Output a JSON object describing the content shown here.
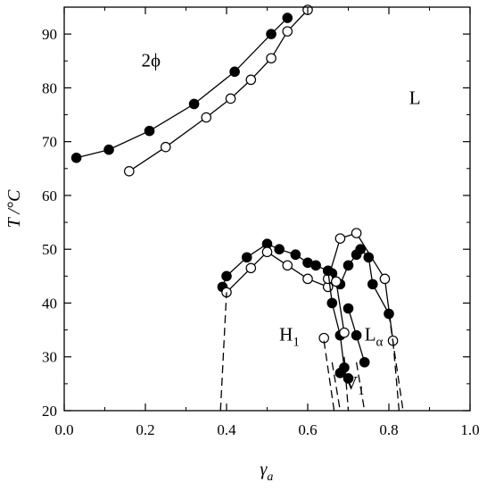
{
  "chart_data": {
    "type": "scatter",
    "xlabel": "γ",
    "xlabel_sub": "a",
    "ylabel": "T /°C",
    "xlim": [
      0.0,
      1.0
    ],
    "ylim": [
      20,
      95
    ],
    "xticks": [
      "0.0",
      "0.2",
      "0.4",
      "0.6",
      "0.8",
      "1.0"
    ],
    "yticks": [
      "20",
      "30",
      "40",
      "50",
      "60",
      "70",
      "80",
      "90"
    ],
    "grid": false,
    "region_labels": [
      {
        "text": "2ϕ",
        "sub": "",
        "x": 0.19,
        "y": 84
      },
      {
        "text": "L",
        "sub": "",
        "x": 0.85,
        "y": 77
      },
      {
        "text": "H",
        "sub": "1",
        "x": 0.53,
        "y": 33
      },
      {
        "text": "L",
        "sub": "α",
        "x": 0.74,
        "y": 33
      },
      {
        "text": "V",
        "sub": "1",
        "x": 0.69,
        "y": 24
      }
    ],
    "series": [
      {
        "marker": "filled",
        "style": "solid",
        "x": [
          0.03,
          0.11,
          0.21,
          0.32,
          0.42,
          0.51,
          0.55
        ],
        "y": [
          67,
          68.5,
          72,
          77,
          83,
          90,
          93
        ]
      },
      {
        "marker": "open",
        "style": "solid",
        "x": [
          0.16,
          0.25,
          0.35,
          0.41,
          0.46,
          0.51,
          0.55,
          0.6
        ],
        "y": [
          64.5,
          69,
          74.5,
          78,
          81.5,
          85.5,
          90.5,
          94.5
        ]
      },
      {
        "marker": "filled",
        "style": "solid",
        "x": [
          0.39,
          0.4,
          0.45,
          0.5,
          0.53,
          0.57,
          0.6,
          0.62,
          0.65,
          0.66
        ],
        "y": [
          43,
          45,
          48.5,
          51,
          50,
          49,
          47.5,
          47,
          46,
          45.5
        ]
      },
      {
        "marker": "open",
        "style": "solid",
        "x": [
          0.4,
          0.46,
          0.5,
          0.55,
          0.6,
          0.65
        ],
        "y": [
          42,
          46.5,
          49.5,
          47,
          44.5,
          43
        ]
      },
      {
        "marker": "filled",
        "style": "solid",
        "x": [
          0.66,
          0.68,
          0.7,
          0.72,
          0.73,
          0.75,
          0.76,
          0.8
        ],
        "y": [
          45.5,
          43.5,
          47,
          49,
          50,
          48.5,
          43.5,
          38
        ]
      },
      {
        "marker": "open",
        "style": "solid",
        "x": [
          0.65,
          0.68,
          0.72,
          0.79,
          0.81
        ],
        "y": [
          44.5,
          52,
          53,
          44.5,
          33
        ]
      },
      {
        "marker": "filled",
        "style": "solid",
        "x": [
          0.65,
          0.66,
          0.68,
          0.69
        ],
        "y": [
          46,
          40,
          34,
          28
        ]
      },
      {
        "marker": "filled",
        "style": "solid",
        "x": [
          0.7,
          0.72,
          0.74
        ],
        "y": [
          39,
          34,
          29
        ]
      },
      {
        "marker": "open",
        "style": "solid",
        "x": [
          0.67,
          0.69
        ],
        "y": [
          44,
          34.5
        ]
      },
      {
        "marker": "filled",
        "style": "solid",
        "x": [
          0.68,
          0.7
        ],
        "y": [
          27,
          26
        ]
      },
      {
        "marker": "open",
        "style": "solid",
        "x": [
          0.64
        ],
        "y": [
          33.5
        ]
      },
      {
        "marker": "none",
        "style": "dashed",
        "x": [
          0.385,
          0.4
        ],
        "y": [
          20,
          42
        ]
      },
      {
        "marker": "none",
        "style": "dashed",
        "x": [
          0.64,
          0.665
        ],
        "y": [
          33,
          20
        ]
      },
      {
        "marker": "none",
        "style": "dashed",
        "x": [
          0.66,
          0.68
        ],
        "y": [
          29,
          20
        ]
      },
      {
        "marker": "none",
        "style": "dashed",
        "x": [
          0.69,
          0.7
        ],
        "y": [
          30,
          20
        ]
      },
      {
        "marker": "none",
        "style": "dashed",
        "x": [
          0.72,
          0.74
        ],
        "y": [
          29,
          20
        ]
      },
      {
        "marker": "none",
        "style": "dashed",
        "x": [
          0.81,
          0.825
        ],
        "y": [
          33,
          20
        ]
      },
      {
        "marker": "none",
        "style": "dashed",
        "x": [
          0.8,
          0.835
        ],
        "y": [
          38,
          20
        ]
      }
    ]
  }
}
